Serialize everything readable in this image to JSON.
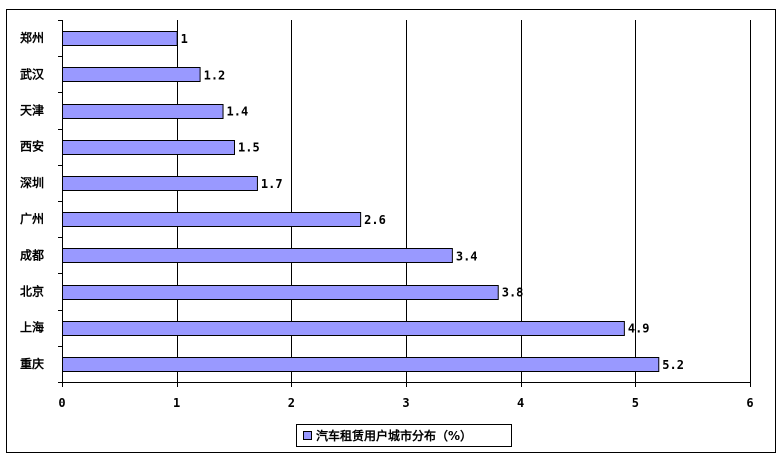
{
  "chart_data": {
    "type": "bar",
    "orientation": "horizontal",
    "categories": [
      "重庆",
      "上海",
      "北京",
      "成都",
      "广州",
      "深圳",
      "西安",
      "天津",
      "武汉",
      "郑州"
    ],
    "series": [
      {
        "name": "汽车租赁用户城市分布（%）",
        "values": [
          5.2,
          4.9,
          3.8,
          3.4,
          2.6,
          1.7,
          1.5,
          1.4,
          1.2,
          1
        ],
        "color": "#9999ff"
      }
    ],
    "data_labels": [
      "5.2",
      "4.9",
      "3.8",
      "3.4",
      "2.6",
      "1.7",
      "1.5",
      "1.4",
      "1.2",
      "1"
    ],
    "xlim": [
      0,
      6
    ],
    "x_ticks": [
      "0",
      "1",
      "2",
      "3",
      "4",
      "5",
      "6"
    ],
    "grid": "vertical",
    "legend": "bottom",
    "title": "",
    "xlabel": "",
    "ylabel": "",
    "colors": {
      "bar_fill": "#9999ff",
      "bar_stroke": "#000000",
      "grid": "#000000",
      "background": "#ffffff"
    }
  }
}
